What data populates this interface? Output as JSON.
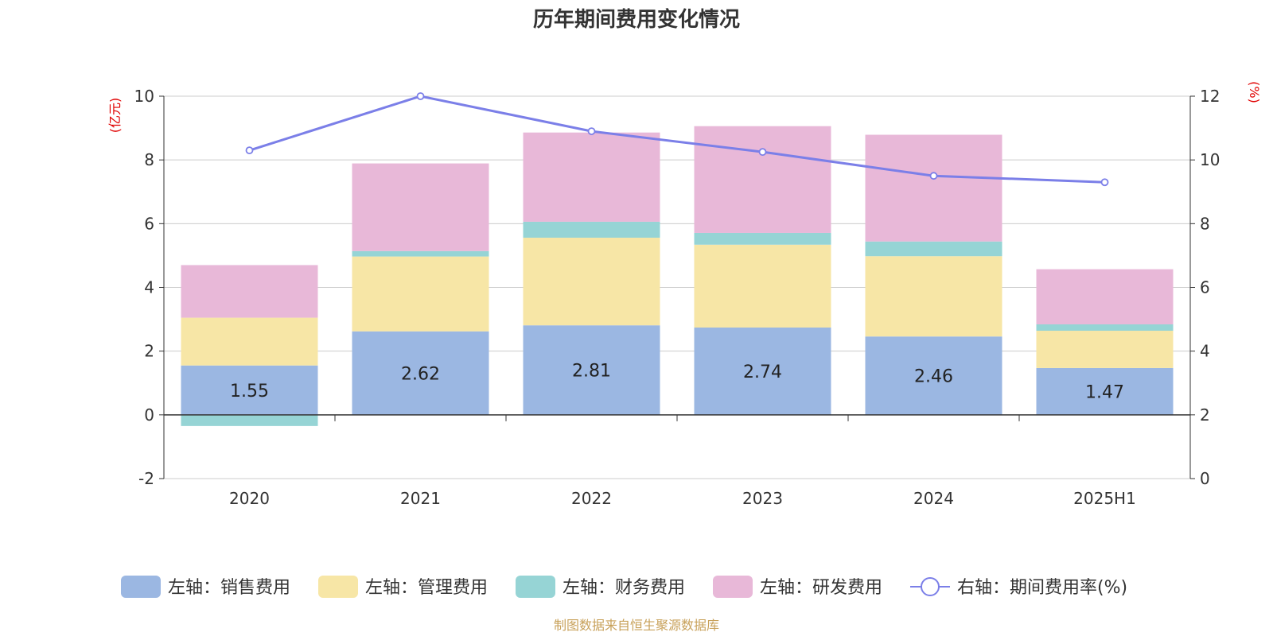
{
  "chart_data": {
    "type": "bar",
    "title": "历年期间费用变化情况",
    "categories": [
      "2020",
      "2021",
      "2022",
      "2023",
      "2024",
      "2025H1"
    ],
    "left_axis": {
      "name": "(亿元)",
      "ylim": [
        -2,
        10
      ],
      "ticks": [
        -2,
        0,
        2,
        4,
        6,
        8,
        10
      ]
    },
    "right_axis": {
      "name": "(%)",
      "ylim": [
        0,
        12
      ],
      "ticks": [
        0,
        2,
        4,
        6,
        8,
        10,
        12
      ]
    },
    "stacked": true,
    "grid": true,
    "legend_position": "bottom",
    "series": [
      {
        "name": "左轴：销售费用",
        "axis": "left",
        "type": "bar",
        "color": "#9bb7e2",
        "values": [
          1.55,
          2.62,
          2.81,
          2.74,
          2.46,
          1.47
        ],
        "show_labels": true
      },
      {
        "name": "左轴：管理费用",
        "axis": "left",
        "type": "bar",
        "color": "#f7e6a6",
        "values": [
          1.5,
          2.35,
          2.75,
          2.6,
          2.52,
          1.17
        ]
      },
      {
        "name": "左轴：财务费用",
        "axis": "left",
        "type": "bar",
        "color": "#96d4d5",
        "values": [
          -0.35,
          0.17,
          0.5,
          0.37,
          0.46,
          0.2
        ]
      },
      {
        "name": "左轴：研发费用",
        "axis": "left",
        "type": "bar",
        "color": "#e8b8d8",
        "values": [
          1.65,
          2.75,
          2.8,
          3.35,
          3.35,
          1.73
        ]
      },
      {
        "name": "右轴：期间费用率(%)",
        "axis": "right",
        "type": "line",
        "color": "#7b7fe8",
        "values": [
          10.3,
          12.0,
          10.9,
          10.25,
          9.5,
          9.3
        ]
      }
    ],
    "source_note": "制图数据来自恒生聚源数据库"
  }
}
